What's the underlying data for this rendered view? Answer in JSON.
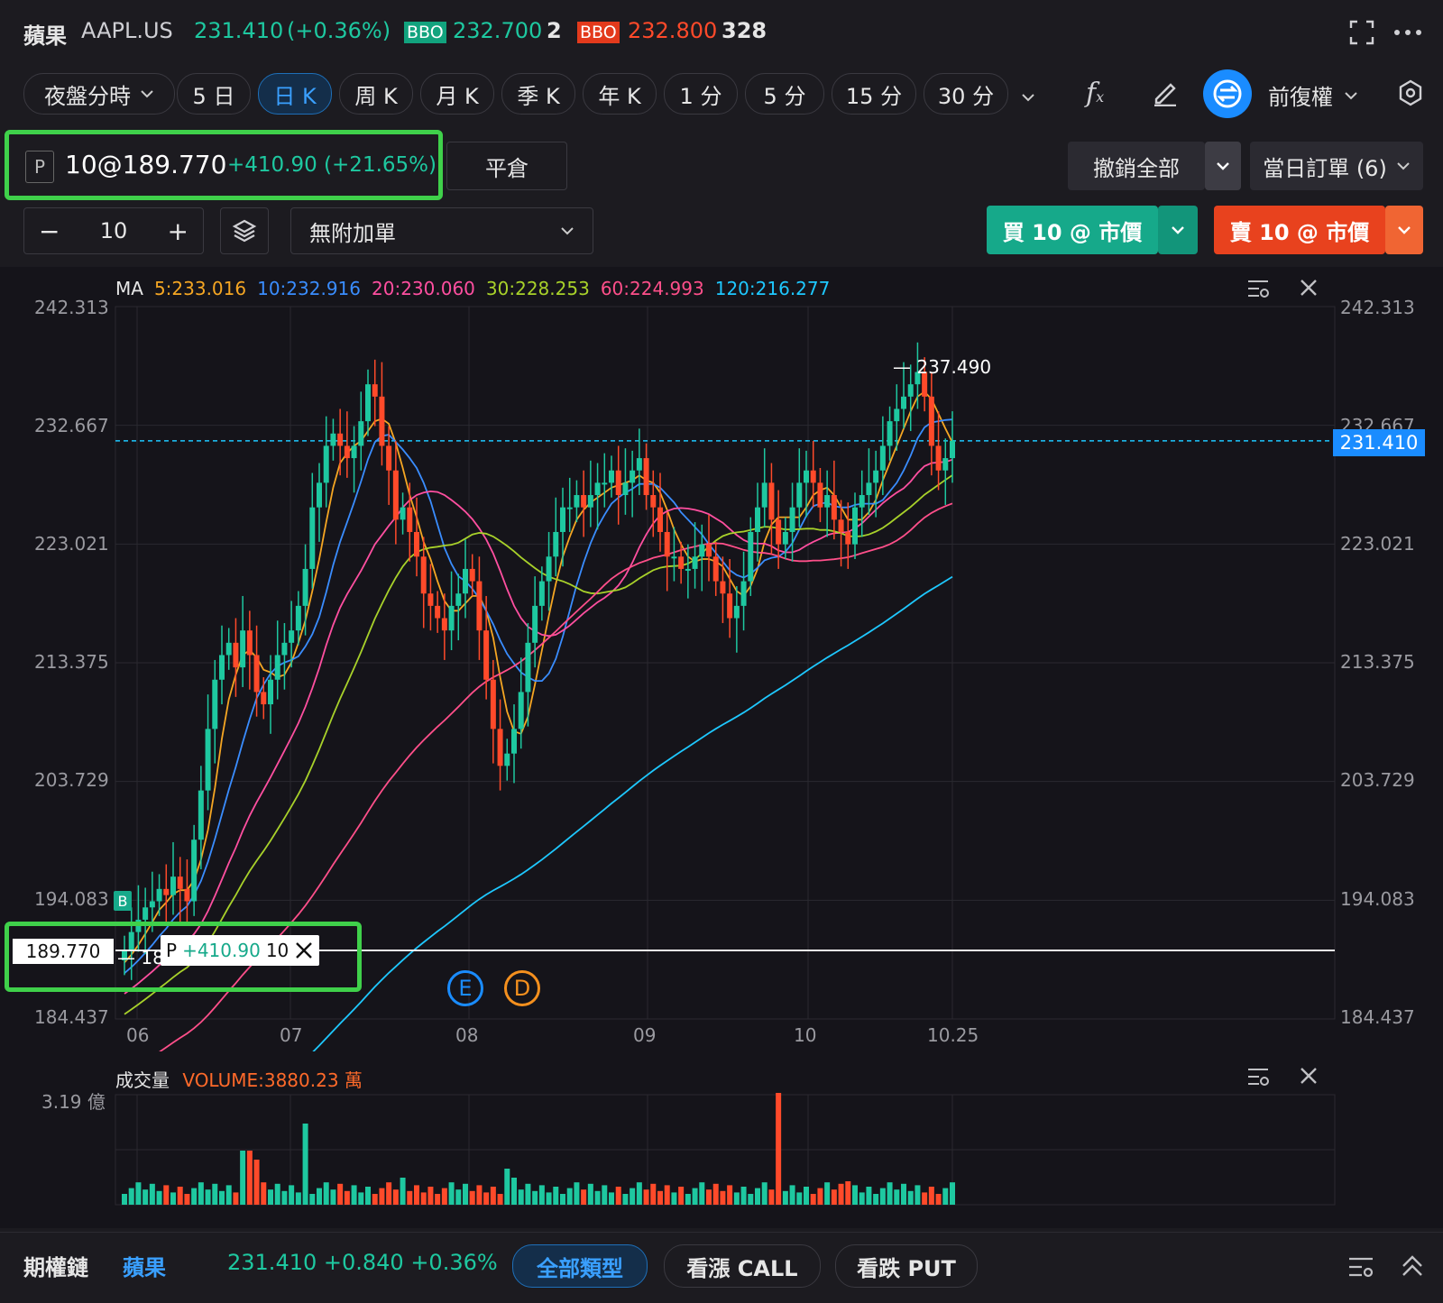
{
  "header": {
    "name": "蘋果",
    "code": "AAPL.US",
    "price": "231.410",
    "change": "(+0.36%)",
    "bbo_bid_label": "BBO",
    "bbo_bid_price": "232.700",
    "bbo_bid_qty": "2",
    "bbo_ask_label": "BBO",
    "bbo_ask_price": "232.800",
    "bbo_ask_qty": "328",
    "expand_icon": "expand-icon",
    "more_icon": "more-icon"
  },
  "toolbar": {
    "tabs": [
      {
        "label": "夜盤分時"
      },
      {
        "label": "5 日"
      },
      {
        "label": "日 K"
      },
      {
        "label": "周 K"
      },
      {
        "label": "月 K"
      },
      {
        "label": "季 K"
      },
      {
        "label": "年 K"
      },
      {
        "label": "1 分"
      },
      {
        "label": "5 分"
      },
      {
        "label": "15 分"
      },
      {
        "label": "30 分"
      }
    ],
    "active": "日 K",
    "adjust": "前復權"
  },
  "position": {
    "tag": "P",
    "qty_price": "10@189.770",
    "pnl": "+410.90 (+21.65%)",
    "close_label": "平倉",
    "cancel_all": "撤銷全部",
    "today_orders": "當日訂單 (6)"
  },
  "order": {
    "qty": "10",
    "minus": "−",
    "plus": "+",
    "attach": "無附加單",
    "buy_label": "買 10 @ 市價",
    "sell_label": "賣 10 @ 市價"
  },
  "ma": {
    "label": "MA",
    "items": [
      {
        "text": "5:233.016",
        "color": "#f5a623"
      },
      {
        "text": "10:232.916",
        "color": "#3a8dff"
      },
      {
        "text": "20:230.060",
        "color": "#ff4fa0"
      },
      {
        "text": "30:228.253",
        "color": "#a8d12a"
      },
      {
        "text": "60:224.993",
        "color": "#ff4f8a"
      },
      {
        "text": "120:216.277",
        "color": "#1ec8ff"
      }
    ]
  },
  "chart_data": {
    "type": "candlestick",
    "y_ticks": [
      "242.313",
      "232.667",
      "223.021",
      "213.375",
      "203.729",
      "194.083",
      "184.437"
    ],
    "ylim": [
      184.437,
      242.313
    ],
    "x_ticks": [
      "06",
      "07",
      "08",
      "09",
      "10",
      "10.25"
    ],
    "current_price": "231.410",
    "high_marker": "237.490",
    "position_line_price": "189.770",
    "position_line_label": {
      "tag": "P",
      "pnl": "+410.90",
      "qty": "10"
    },
    "low_marker": "18…",
    "event_markers": [
      "E",
      "D"
    ],
    "buy_marker": "B",
    "closes": [
      190,
      191.5,
      192.5,
      193.5,
      194,
      195,
      194.5,
      196,
      195,
      194,
      199,
      203,
      208,
      212,
      214,
      215,
      213,
      216,
      214,
      211,
      210,
      212,
      214,
      215,
      216,
      218,
      221,
      226,
      228,
      231,
      232,
      231,
      230,
      231,
      233,
      236,
      235,
      231,
      229,
      225,
      226,
      224,
      222,
      219,
      218,
      217,
      216,
      218,
      219,
      221,
      220,
      216,
      212,
      208,
      205,
      206,
      208,
      211,
      215,
      218,
      220,
      222,
      224,
      226,
      226,
      227,
      226,
      227,
      228,
      228,
      229,
      227,
      228,
      229,
      230,
      227,
      226,
      224,
      222,
      222,
      221,
      221,
      222,
      223,
      222,
      220,
      219,
      217,
      218,
      220,
      224,
      226,
      228,
      225,
      223,
      224,
      226,
      228,
      229,
      228,
      226,
      227,
      225,
      224,
      223,
      226,
      227,
      228,
      229,
      231,
      233,
      234,
      235,
      236,
      237,
      235,
      231,
      229,
      230,
      231.41
    ]
  },
  "volume": {
    "label": "成交量",
    "value": "VOLUME:3880.23 萬",
    "max_label": "3.19 億"
  },
  "bottom": {
    "title": "期權鏈",
    "name": "蘋果",
    "quote": "231.410 +0.840 +0.36%",
    "all_types": "全部類型",
    "call": "看漲 CALL",
    "put": "看跌 PUT"
  }
}
